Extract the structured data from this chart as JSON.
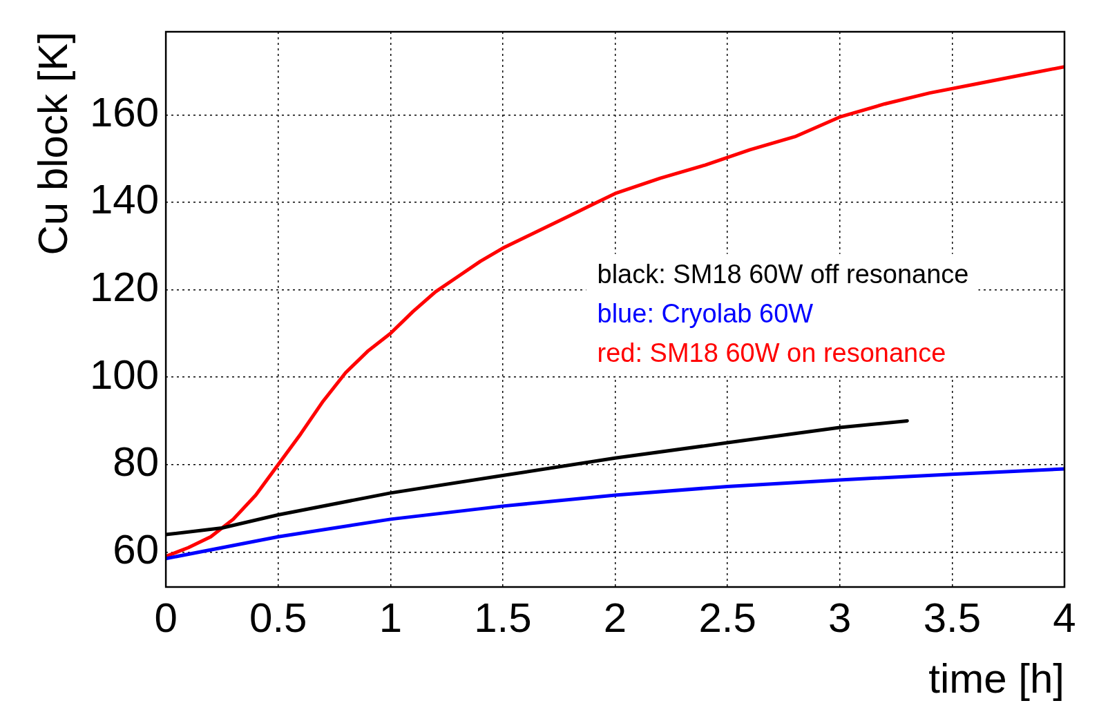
{
  "chart_data": {
    "type": "line",
    "xlabel": "time [h]",
    "ylabel": "Cu block [K]",
    "xlim": [
      0,
      4
    ],
    "xticks": [
      0,
      0.5,
      1,
      1.5,
      2,
      2.5,
      3,
      3.5,
      4
    ],
    "ylim": [
      52,
      179
    ],
    "yticks": [
      60,
      80,
      100,
      120,
      140,
      160
    ],
    "grid": true,
    "legend": "right",
    "marker": "none",
    "line_style": "solid",
    "series": [
      {
        "name": "black: SM18 60W off resonance",
        "color": "#000000",
        "x": [
          0,
          0.25,
          0.5,
          1,
          1.5,
          2,
          2.5,
          3,
          3.3
        ],
        "values": [
          64,
          65.5,
          68.5,
          73.5,
          77.5,
          81.5,
          85,
          88.5,
          90
        ]
      },
      {
        "name": "blue: Cryolab 60W",
        "color": "#0000ff",
        "x": [
          0,
          0.5,
          1,
          1.5,
          2,
          2.5,
          3,
          3.5,
          4
        ],
        "values": [
          58.5,
          63.5,
          67.5,
          70.5,
          73,
          75,
          76.5,
          77.8,
          79
        ]
      },
      {
        "name": "red: SM18 60W on resonance",
        "color": "#ff0000",
        "x": [
          0,
          0.1,
          0.2,
          0.3,
          0.4,
          0.5,
          0.6,
          0.7,
          0.8,
          0.9,
          1,
          1.1,
          1.2,
          1.3,
          1.4,
          1.5,
          1.6,
          1.7,
          1.8,
          1.9,
          2,
          2.2,
          2.4,
          2.6,
          2.8,
          3,
          3.2,
          3.4,
          3.6,
          3.8,
          4
        ],
        "values": [
          59,
          61,
          63.5,
          67.5,
          73,
          80,
          87,
          94.5,
          101,
          106,
          110,
          115,
          119.5,
          123,
          126.5,
          129.5,
          132,
          134.5,
          137,
          139.5,
          142,
          145.5,
          148.5,
          152,
          155,
          159.5,
          162.5,
          165,
          167,
          169,
          171
        ]
      }
    ]
  }
}
